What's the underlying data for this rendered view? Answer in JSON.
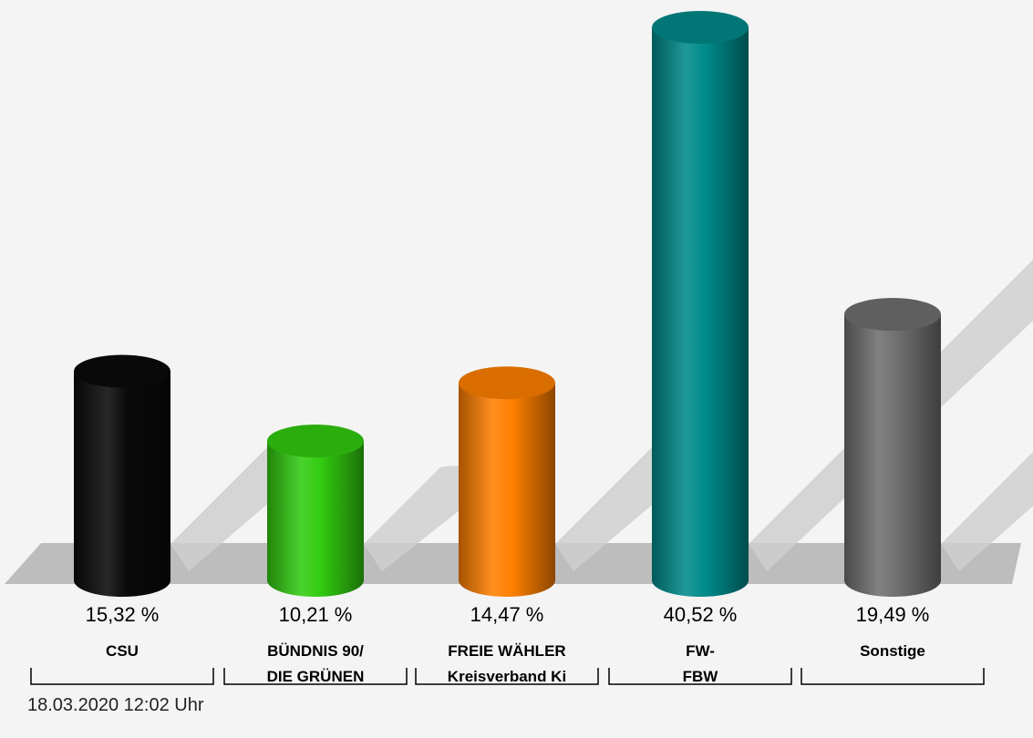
{
  "timestamp": "18.03.2020 12:02 Uhr",
  "chart_data": {
    "type": "bar",
    "style": "3d-cylinder",
    "grid": false,
    "categories": [
      [
        "CSU"
      ],
      [
        "BÜNDNIS 90/",
        "DIE GRÜNEN"
      ],
      [
        "FREIE WÄHLER",
        "Kreisverband Ki"
      ],
      [
        "FW-",
        "FBW"
      ],
      [
        "Sonstige"
      ]
    ],
    "values": [
      15.32,
      10.21,
      14.47,
      40.52,
      19.49
    ],
    "value_labels": [
      "15,32 %",
      "10,21 %",
      "14,47 %",
      "40,52 %",
      "19,49 %"
    ],
    "colors": [
      "#0a0a0a",
      "#33cc11",
      "#ff8000",
      "#008b8b",
      "#707070"
    ],
    "ylim": [
      0,
      40.52
    ]
  }
}
